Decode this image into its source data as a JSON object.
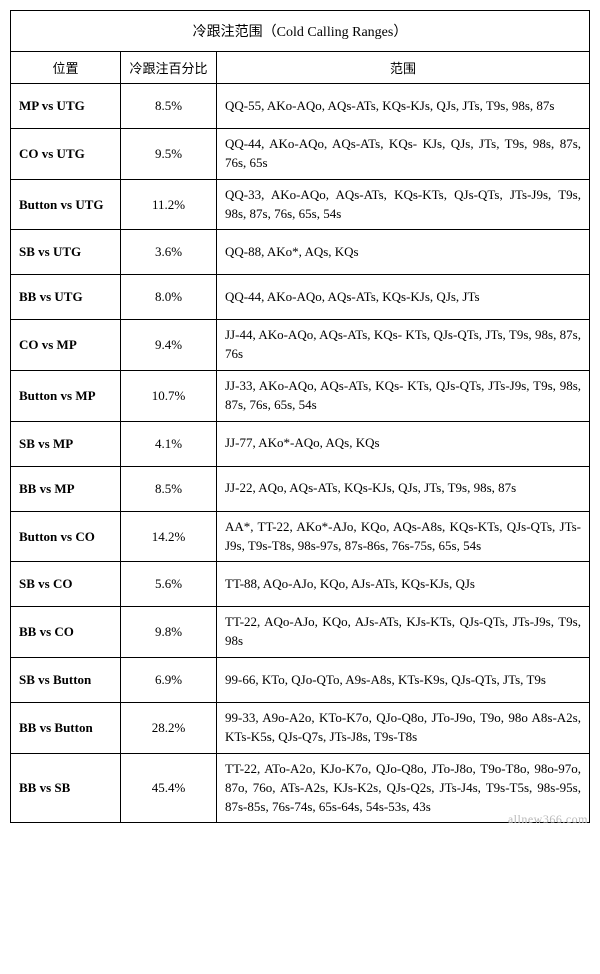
{
  "title": "冷跟注范围（Cold Calling Ranges）",
  "columns": [
    "位置",
    "冷跟注百分比",
    "范围"
  ],
  "rows": [
    {
      "position": "MP vs UTG",
      "pct": "8.5%",
      "range": "QQ-55, AKo-AQo, AQs-ATs, KQs-KJs, QJs, JTs, T9s, 98s, 87s"
    },
    {
      "position": "CO vs UTG",
      "pct": "9.5%",
      "range": "QQ-44, AKo-AQo, AQs-ATs, KQs- KJs, QJs, JTs, T9s, 98s, 87s, 76s, 65s"
    },
    {
      "position": "Button vs UTG",
      "pct": "11.2%",
      "range": "QQ-33, AKo-AQo, AQs-ATs, KQs-KTs, QJs-QTs, JTs-J9s, T9s, 98s, 87s, 76s, 65s, 54s"
    },
    {
      "position": "SB vs UTG",
      "pct": "3.6%",
      "range": "QQ-88, AKo*, AQs, KQs"
    },
    {
      "position": "BB vs UTG",
      "pct": "8.0%",
      "range": "QQ-44, AKo-AQo, AQs-ATs, KQs-KJs, QJs, JTs"
    },
    {
      "position": "CO vs MP",
      "pct": "9.4%",
      "range": "JJ-44, AKo-AQo, AQs-ATs, KQs- KTs, QJs-QTs, JTs, T9s, 98s, 87s, 76s"
    },
    {
      "position": "Button vs MP",
      "pct": "10.7%",
      "range": "JJ-33, AKo-AQo, AQs-ATs, KQs- KTs, QJs-QTs, JTs-J9s, T9s, 98s, 87s, 76s, 65s, 54s"
    },
    {
      "position": "SB vs MP",
      "pct": "4.1%",
      "range": "JJ-77, AKo*-AQo, AQs, KQs"
    },
    {
      "position": "BB vs MP",
      "pct": "8.5%",
      "range": "JJ-22, AQo, AQs-ATs, KQs-KJs, QJs, JTs, T9s, 98s, 87s"
    },
    {
      "position": "Button vs CO",
      "pct": "14.2%",
      "range": "AA*, TT-22, AKo*-AJo, KQo, AQs-A8s, KQs-KTs, QJs-QTs, JTs-J9s, T9s-T8s, 98s-97s, 87s-86s, 76s-75s, 65s, 54s"
    },
    {
      "position": "SB vs CO",
      "pct": "5.6%",
      "range": "TT-88, AQo-AJo, KQo, AJs-ATs, KQs-KJs, QJs"
    },
    {
      "position": "BB vs CO",
      "pct": "9.8%",
      "range": "TT-22, AQo-AJo, KQo, AJs-ATs, KJs-KTs, QJs-QTs, JTs-J9s, T9s, 98s"
    },
    {
      "position": "SB vs Button",
      "pct": "6.9%",
      "range": "99-66, KTo, QJo-QTo, A9s-A8s, KTs-K9s, QJs-QTs, JTs, T9s"
    },
    {
      "position": "BB vs Button",
      "pct": "28.2%",
      "range": "99-33, A9o-A2o, KTo-K7o, QJo-Q8o, JTo-J9o, T9o, 98o A8s-A2s, KTs-K5s, QJs-Q7s, JTs-J8s, T9s-T8s"
    },
    {
      "position": "BB vs SB",
      "pct": "45.4%",
      "range": "TT-22, ATo-A2o, KJo-K7o, QJo-Q8o, JTo-J8o, T9o-T8o, 98o-97o, 87o, 76o, ATs-A2s, KJs-K2s, QJs-Q2s, JTs-J4s, T9s-T5s, 98s-95s, 87s-85s, 76s-74s, 65s-64s, 54s-53s, 43s"
    }
  ],
  "watermark": "allnew366.com"
}
